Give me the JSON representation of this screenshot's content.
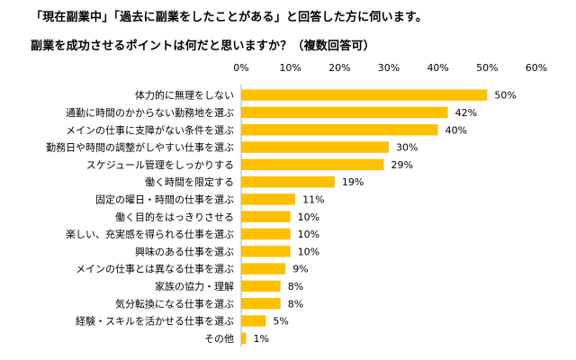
{
  "title_line1": "「現在副業中」「過去に副業をしたことがある」と回答した方に伺います。",
  "title_line2": "副業を成功させるポイントは何だと思いますか？（複数回答可）",
  "colors": {
    "bar": "#FFC000",
    "text": "#000000"
  },
  "chart_data": {
    "type": "bar",
    "orientation": "horizontal",
    "categories": [
      "体力的に無理をしない",
      "通勤に時間のかからない勤務地を選ぶ",
      "メインの仕事に支障がない条件を選ぶ",
      "勤務日や時間の調整がしやすい仕事を選ぶ",
      "スケジュール管理をしっかりする",
      "働く時間を限定する",
      "固定の曜日・時間の仕事を選ぶ",
      "働く目的をはっきりさせる",
      "楽しい、充実感を得られる仕事を選ぶ",
      "興味のある仕事を選ぶ",
      "メインの仕事とは異なる仕事を選ぶ",
      "家族の協力・理解",
      "気分転換になる仕事を選ぶ",
      "経験・スキルを活かせる仕事を選ぶ",
      "その他"
    ],
    "values": [
      50,
      42,
      40,
      30,
      29,
      19,
      11,
      10,
      10,
      10,
      9,
      8,
      8,
      5,
      1
    ],
    "value_labels": [
      "50%",
      "42%",
      "40%",
      "30%",
      "29%",
      "19%",
      "11%",
      "10%",
      "10%",
      "10%",
      "9%",
      "8%",
      "8%",
      "5%",
      "1%"
    ],
    "xlim": [
      0,
      60
    ],
    "xticks": [
      0,
      10,
      20,
      30,
      40,
      50,
      60
    ],
    "xtick_labels": [
      "0%",
      "10%",
      "20%",
      "30%",
      "40%",
      "50%",
      "60%"
    ],
    "grid": false,
    "axis_position": "top"
  }
}
